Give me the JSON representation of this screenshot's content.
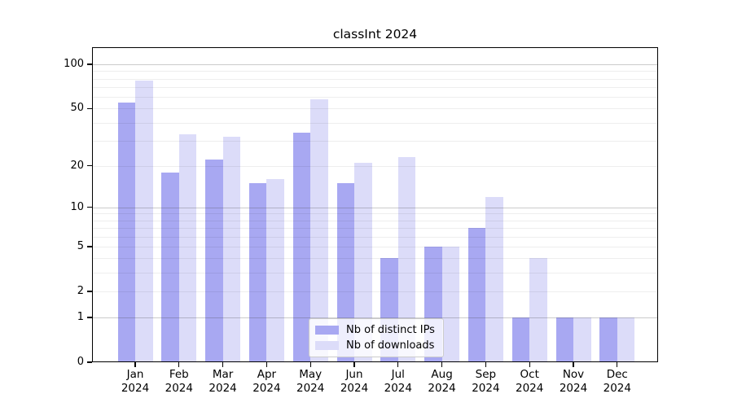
{
  "figure": {
    "title": "classInt 2024"
  },
  "chart_data": {
    "type": "bar",
    "title": "classInt 2024",
    "categories": [
      "Jan 2024",
      "Feb 2024",
      "Mar 2024",
      "Apr 2024",
      "May 2024",
      "Jun 2024",
      "Jul 2024",
      "Aug 2024",
      "Sep 2024",
      "Oct 2024",
      "Nov 2024",
      "Dec 2024"
    ],
    "series": [
      {
        "name": "Nb of distinct IPs",
        "color": "#a8a8f2",
        "values": [
          55,
          18,
          22,
          15,
          34,
          15,
          4,
          5,
          7,
          1,
          1,
          1
        ]
      },
      {
        "name": "Nb of downloads",
        "color": "#dcdcf9",
        "values": [
          78,
          33,
          32,
          16,
          58,
          21,
          23,
          5,
          12,
          4,
          1,
          1
        ]
      }
    ],
    "xlabel": "",
    "ylabel": "",
    "yscale": "log1p",
    "ylim": [
      0,
      130
    ],
    "y_tick_labels": [
      100,
      50,
      20,
      10,
      5,
      2,
      1,
      0
    ],
    "y_major_gridlines": [
      100,
      10,
      1
    ],
    "y_minor_gridlines": [
      90,
      80,
      70,
      60,
      50,
      40,
      30,
      20,
      9,
      8,
      7,
      6,
      5,
      4,
      3,
      2
    ],
    "grid": "horizontal",
    "legend_position": "lower-center",
    "axis_color": "#000000"
  }
}
